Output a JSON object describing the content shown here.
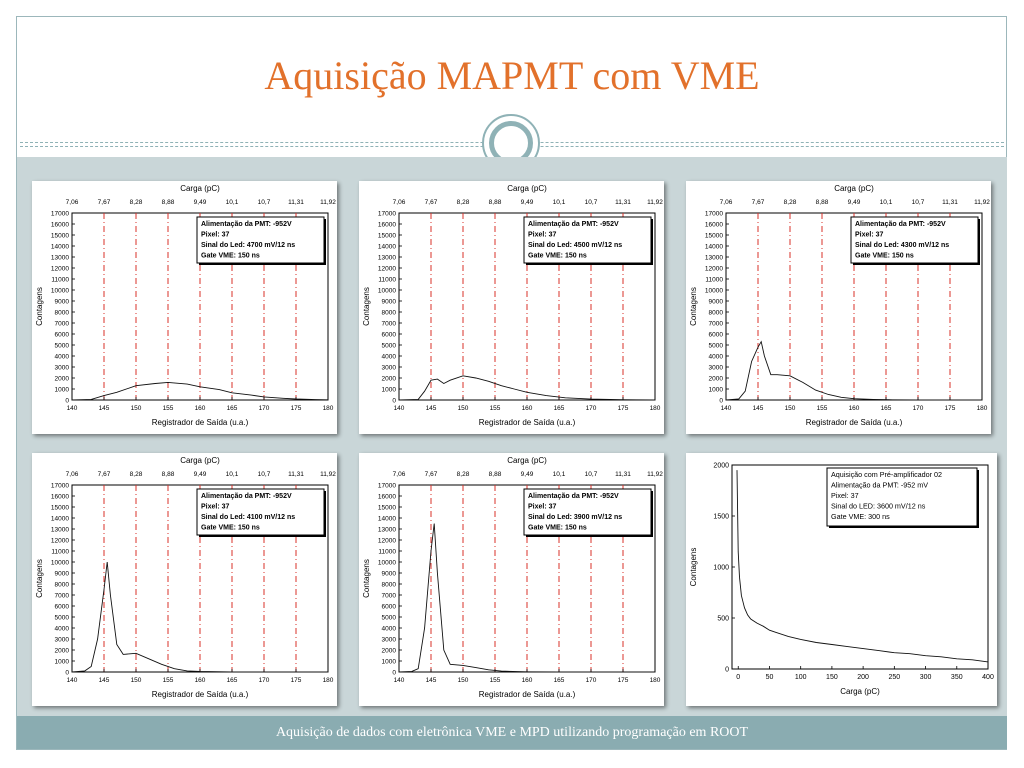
{
  "slide": {
    "title": "Aquisição MAPMT com VME",
    "footer": "Aquisição de dados com eletrônica VME e MPD utilizando programação em ROOT"
  },
  "colors": {
    "title": "#e2712b",
    "accent": "#8fb2b6",
    "footer_bg": "#8aacb1",
    "marker_lines": "#d9302a"
  },
  "charts": [
    {
      "type": "line",
      "title": "Carga (pC)",
      "xlabel": "Registrador de Saída (u.a.)",
      "ylabel": "Contagens",
      "top_ticks": [
        "7,06",
        "7,67",
        "8,28",
        "8,88",
        "9,49",
        "10,1",
        "10,7",
        "11,31",
        "11,92"
      ],
      "xlim": [
        140,
        180
      ],
      "ylim": [
        0,
        17000
      ],
      "x_ticks": [
        140,
        145,
        150,
        155,
        160,
        165,
        170,
        175,
        180
      ],
      "y_ticks": [
        0,
        1000,
        2000,
        3000,
        4000,
        5000,
        6000,
        7000,
        8000,
        9000,
        10000,
        11000,
        12000,
        13000,
        14000,
        15000,
        16000,
        17000
      ],
      "marker_x": [
        145,
        150,
        155,
        160,
        165,
        170,
        175
      ],
      "legend": [
        "Alimentação da PMT: -952V",
        "Pixel: 37",
        "Sinal do Led: 4700 mV/12 ns",
        "Gate VME: 150 ns"
      ],
      "x": [
        140,
        143,
        145,
        147,
        150,
        153,
        155,
        158,
        160,
        163,
        165,
        168,
        170,
        173,
        175,
        178,
        180
      ],
      "y": [
        0,
        50,
        400,
        700,
        1300,
        1500,
        1600,
        1450,
        1200,
        950,
        650,
        450,
        280,
        150,
        90,
        40,
        20
      ]
    },
    {
      "type": "line",
      "title": "Carga (pC)",
      "xlabel": "Registrador de Saída (u.a.)",
      "ylabel": "Contagens",
      "top_ticks": [
        "7,06",
        "7,67",
        "8,28",
        "8,88",
        "9,49",
        "10,1",
        "10,7",
        "11,31",
        "11,92"
      ],
      "xlim": [
        140,
        180
      ],
      "ylim": [
        0,
        17000
      ],
      "x_ticks": [
        140,
        145,
        150,
        155,
        160,
        165,
        170,
        175,
        180
      ],
      "y_ticks": [
        0,
        1000,
        2000,
        3000,
        4000,
        5000,
        6000,
        7000,
        8000,
        9000,
        10000,
        11000,
        12000,
        13000,
        14000,
        15000,
        16000,
        17000
      ],
      "marker_x": [
        145,
        150,
        155,
        160,
        165,
        170,
        175
      ],
      "legend": [
        "Alimentação da PMT: -952V",
        "Pixel: 37",
        "Sinal do Led: 4500 mV/12 ns",
        "Gate VME: 150 ns"
      ],
      "x": [
        140,
        143,
        144,
        145,
        146,
        147,
        148,
        150,
        152,
        154,
        156,
        158,
        160,
        163,
        166,
        170,
        175,
        180
      ],
      "y": [
        0,
        50,
        800,
        1800,
        1900,
        1500,
        1800,
        2200,
        2000,
        1700,
        1300,
        1000,
        700,
        400,
        200,
        80,
        30,
        10
      ]
    },
    {
      "type": "line",
      "title": "Carga (pC)",
      "xlabel": "Registrador de Saída (u.a.)",
      "ylabel": "Contagens",
      "top_ticks": [
        "7,06",
        "7,67",
        "8,28",
        "8,88",
        "9,49",
        "10,1",
        "10,7",
        "11,31",
        "11,92"
      ],
      "xlim": [
        140,
        180
      ],
      "ylim": [
        0,
        17000
      ],
      "x_ticks": [
        140,
        145,
        150,
        155,
        160,
        165,
        170,
        175,
        180
      ],
      "y_ticks": [
        0,
        1000,
        2000,
        3000,
        4000,
        5000,
        6000,
        7000,
        8000,
        9000,
        10000,
        11000,
        12000,
        13000,
        14000,
        15000,
        16000,
        17000
      ],
      "marker_x": [
        145,
        150,
        155,
        160,
        165,
        170,
        175
      ],
      "legend": [
        "Alimentação da PMT: -952V",
        "Pixel: 37",
        "Sinal do Led: 4300 mV/12 ns",
        "Gate VME: 150 ns"
      ],
      "x": [
        140,
        142,
        143,
        144,
        145,
        145.5,
        146,
        147,
        148,
        150,
        152,
        154,
        156,
        158,
        160,
        163,
        166,
        170,
        175,
        180
      ],
      "y": [
        0,
        100,
        800,
        3500,
        4800,
        5300,
        4000,
        2300,
        2300,
        2200,
        1600,
        900,
        500,
        250,
        120,
        50,
        20,
        10,
        0,
        0
      ]
    },
    {
      "type": "line",
      "title": "Carga (pC)",
      "xlabel": "Registrador de Saída (u.a.)",
      "ylabel": "Contagens",
      "top_ticks": [
        "7,06",
        "7,67",
        "8,28",
        "8,88",
        "9,49",
        "10,1",
        "10,7",
        "11,31",
        "11,92"
      ],
      "xlim": [
        140,
        180
      ],
      "ylim": [
        0,
        17000
      ],
      "x_ticks": [
        140,
        145,
        150,
        155,
        160,
        165,
        170,
        175,
        180
      ],
      "y_ticks": [
        0,
        1000,
        2000,
        3000,
        4000,
        5000,
        6000,
        7000,
        8000,
        9000,
        10000,
        11000,
        12000,
        13000,
        14000,
        15000,
        16000,
        17000
      ],
      "marker_x": [
        145,
        150,
        155,
        160,
        165,
        170,
        175
      ],
      "legend": [
        "Alimentação da PMT: -952V",
        "Pixel: 37",
        "Sinal do Led: 4100 mV/12 ns",
        "Gate VME: 150 ns"
      ],
      "x": [
        140,
        142,
        143,
        144,
        145,
        145.5,
        146,
        147,
        148,
        150,
        152,
        154,
        156,
        158,
        160,
        165,
        170,
        180
      ],
      "y": [
        0,
        100,
        500,
        3000,
        7500,
        10000,
        7000,
        2500,
        1600,
        1700,
        1200,
        700,
        300,
        100,
        50,
        10,
        0,
        0
      ]
    },
    {
      "type": "line",
      "title": "Carga (pC)",
      "xlabel": "Registrador de Saída (u.a.)",
      "ylabel": "Contagens",
      "top_ticks": [
        "7,06",
        "7,67",
        "8,28",
        "8,88",
        "9,49",
        "10,1",
        "10,7",
        "11,31",
        "11,92"
      ],
      "xlim": [
        140,
        180
      ],
      "ylim": [
        0,
        17000
      ],
      "x_ticks": [
        140,
        145,
        150,
        155,
        160,
        165,
        170,
        175,
        180
      ],
      "y_ticks": [
        0,
        1000,
        2000,
        3000,
        4000,
        5000,
        6000,
        7000,
        8000,
        9000,
        10000,
        11000,
        12000,
        13000,
        14000,
        15000,
        16000,
        17000
      ],
      "marker_x": [
        145,
        150,
        155,
        160,
        165,
        170,
        175
      ],
      "legend": [
        "Alimentação da PMT: -952V",
        "Pixel: 37",
        "Sinal do Led: 3900 mV/12 ns",
        "Gate VME: 150 ns"
      ],
      "x": [
        140,
        142,
        143,
        144,
        145,
        145.5,
        146,
        147,
        148,
        150,
        152,
        154,
        156,
        160,
        165,
        180
      ],
      "y": [
        0,
        50,
        300,
        4000,
        11000,
        13500,
        9000,
        2000,
        700,
        600,
        400,
        200,
        80,
        20,
        0,
        0
      ]
    },
    {
      "type": "line",
      "title": "",
      "xlabel": "Carga (pC)",
      "ylabel": "Contagens",
      "xlim": [
        -10,
        400
      ],
      "ylim": [
        0,
        2000
      ],
      "x_ticks": [
        0,
        50,
        100,
        150,
        200,
        250,
        300,
        350,
        400
      ],
      "y_ticks": [
        0,
        500,
        1000,
        1500,
        2000
      ],
      "legend": [
        "Aquisição com Pré-amplificador 02",
        "Alimentação da PMT: -952 mV",
        "Pixel: 37",
        "Sinal do LED: 3600 mV/12 ns",
        "Gate VME: 300 ns"
      ],
      "x": [
        -2,
        0,
        2,
        5,
        8,
        10,
        15,
        20,
        25,
        30,
        40,
        50,
        60,
        80,
        100,
        125,
        150,
        175,
        200,
        225,
        250,
        275,
        300,
        325,
        350,
        375,
        400
      ],
      "y": [
        1950,
        1150,
        900,
        720,
        650,
        600,
        530,
        490,
        470,
        450,
        420,
        380,
        360,
        320,
        290,
        260,
        240,
        220,
        200,
        180,
        160,
        150,
        130,
        120,
        100,
        90,
        70
      ]
    }
  ]
}
